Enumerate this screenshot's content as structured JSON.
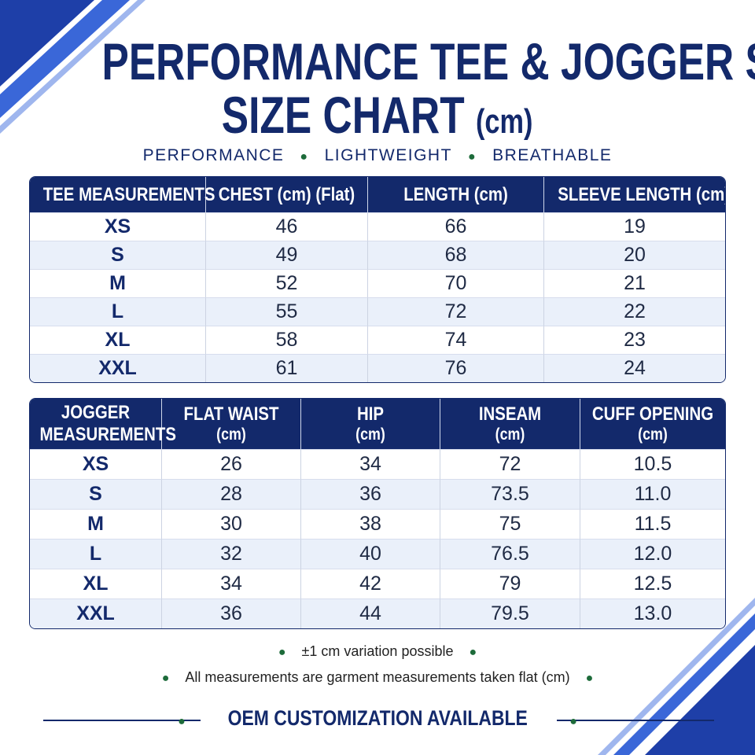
{
  "header": {
    "title_line1": "PERFORMANCE TEE & JOGGER SET",
    "title_line2": "SIZE CHART",
    "title_unit": "(cm)",
    "tagline": [
      "PERFORMANCE",
      "LIGHTWEIGHT",
      "BREATHABLE"
    ]
  },
  "tee_table": {
    "columns": [
      [
        "TEE MEASUREMENTS"
      ],
      [
        "CHEST (cm) (Flat)"
      ],
      [
        "LENGTH (cm)"
      ],
      [
        "SLEEVE LENGTH (cm)"
      ]
    ],
    "rows": [
      [
        "XS",
        "46",
        "66",
        "19"
      ],
      [
        "S",
        "49",
        "68",
        "20"
      ],
      [
        "M",
        "52",
        "70",
        "21"
      ],
      [
        "L",
        "55",
        "72",
        "22"
      ],
      [
        "XL",
        "58",
        "74",
        "23"
      ],
      [
        "XXL",
        "61",
        "76",
        "24"
      ]
    ]
  },
  "jogger_table": {
    "columns": [
      [
        "JOGGER",
        "MEASUREMENTS"
      ],
      [
        "FLAT WAIST",
        "(cm)"
      ],
      [
        "HIP",
        "(cm)"
      ],
      [
        "INSEAM",
        "(cm)"
      ],
      [
        "CUFF OPENING",
        "(cm)"
      ]
    ],
    "rows": [
      [
        "XS",
        "26",
        "34",
        "72",
        "10.5"
      ],
      [
        "S",
        "28",
        "36",
        "73.5",
        "11.0"
      ],
      [
        "M",
        "30",
        "38",
        "75",
        "11.5"
      ],
      [
        "L",
        "32",
        "40",
        "76.5",
        "12.0"
      ],
      [
        "XL",
        "34",
        "42",
        "79",
        "12.5"
      ],
      [
        "XXL",
        "36",
        "44",
        "79.5",
        "13.0"
      ]
    ]
  },
  "notes": [
    "±1 cm variation possible",
    "All measurements are garment measurements taken flat (cm)"
  ],
  "footer": "OEM CUSTOMIZATION AVAILABLE"
}
